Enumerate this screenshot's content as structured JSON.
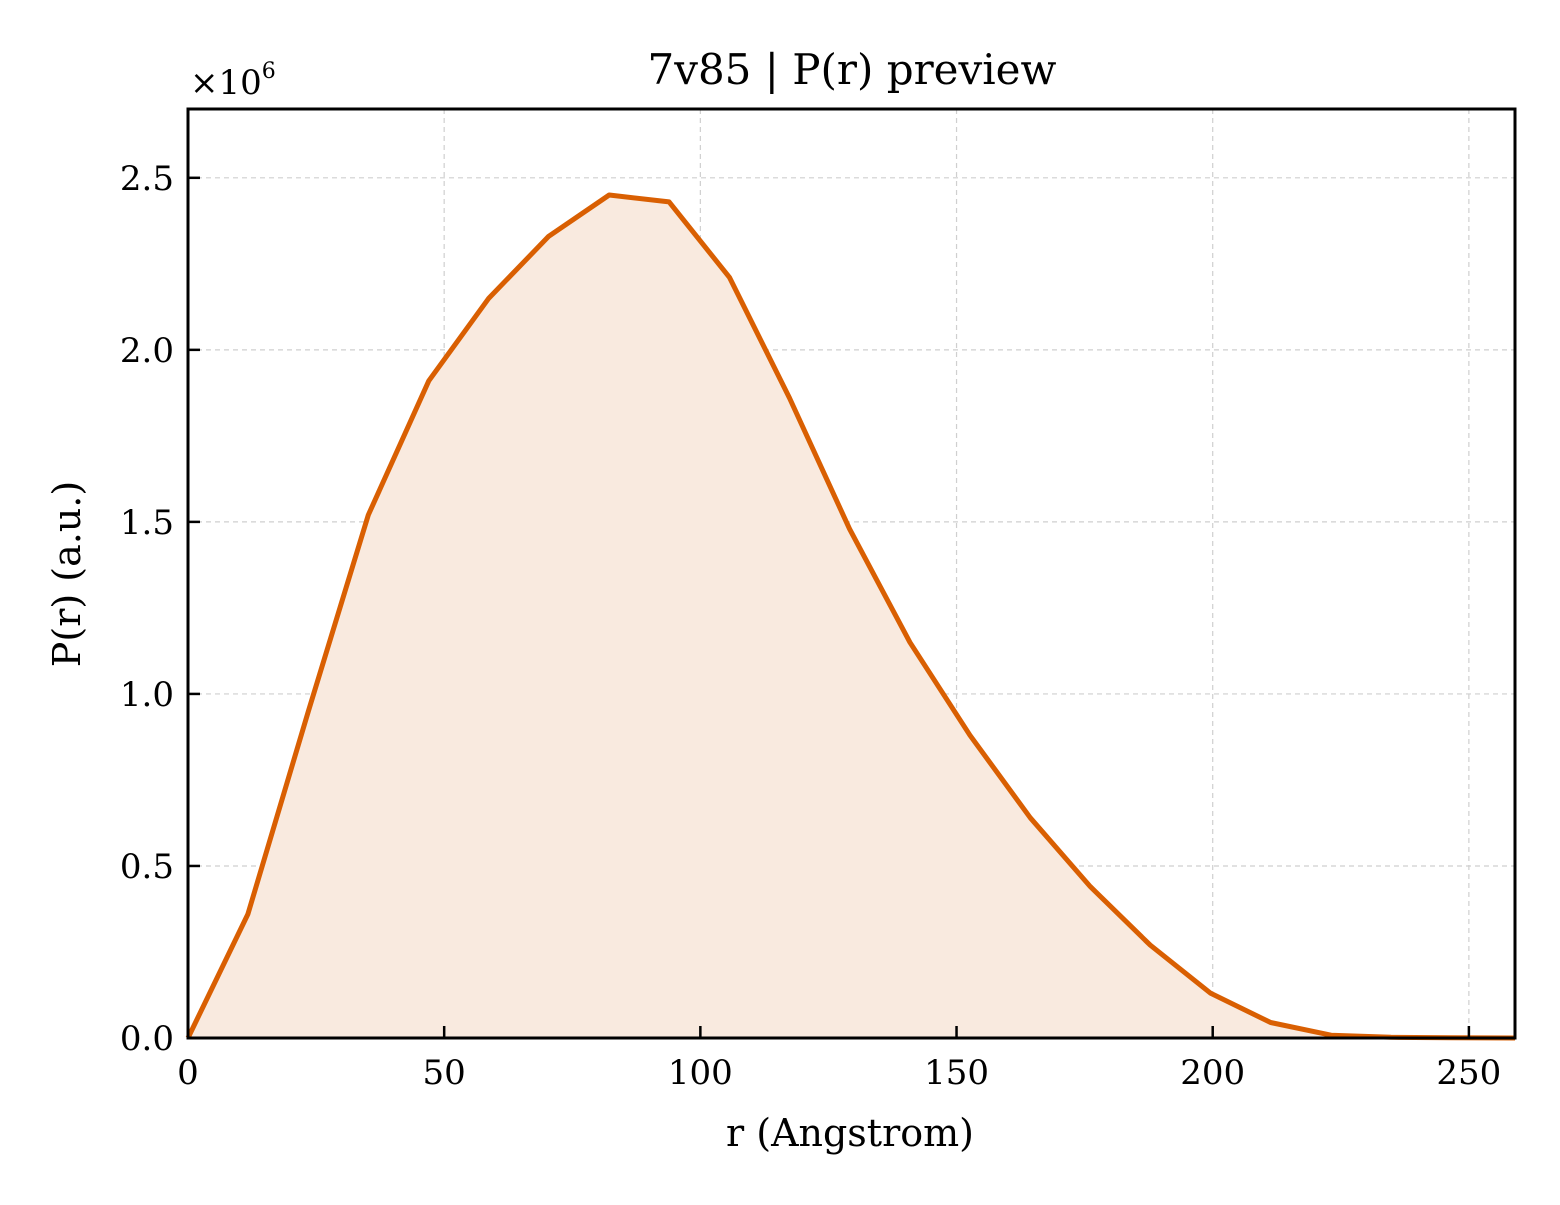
{
  "chart_data": {
    "type": "area",
    "title": "7v85 | P(r) preview",
    "xlabel": "r (Angstrom)",
    "ylabel": "P(r) (a.u.)",
    "y_multiplier_label": "×10",
    "y_multiplier_exponent": "6",
    "y_scale": 1000000,
    "xlim": [
      0,
      259
    ],
    "ylim": [
      0,
      2700000
    ],
    "x_ticks": [
      0,
      50,
      100,
      150,
      200,
      250
    ],
    "x_tick_labels": [
      "0",
      "50",
      "100",
      "150",
      "200",
      "250"
    ],
    "y_ticks": [
      0,
      500000,
      1000000,
      1500000,
      2000000,
      2500000
    ],
    "y_tick_labels": [
      "0.0",
      "0.5",
      "1.0",
      "1.5",
      "2.0",
      "2.5"
    ],
    "grid": true,
    "line_color": "#d95f02",
    "fill_color": "#f9eadf",
    "x": [
      0,
      11.7,
      23.5,
      35.2,
      47.0,
      58.7,
      70.4,
      82.2,
      93.9,
      105.7,
      117.4,
      129.1,
      140.9,
      152.6,
      164.4,
      176.1,
      187.8,
      199.6,
      211.3,
      223.1,
      234.8,
      246.5,
      259
    ],
    "y": [
      0,
      360000,
      950000,
      1520000,
      1910000,
      2150000,
      2330000,
      2450000,
      2430000,
      2210000,
      1860000,
      1480000,
      1150000,
      880000,
      640000,
      440000,
      270000,
      130000,
      45000,
      8000,
      2000,
      1000,
      0
    ]
  }
}
